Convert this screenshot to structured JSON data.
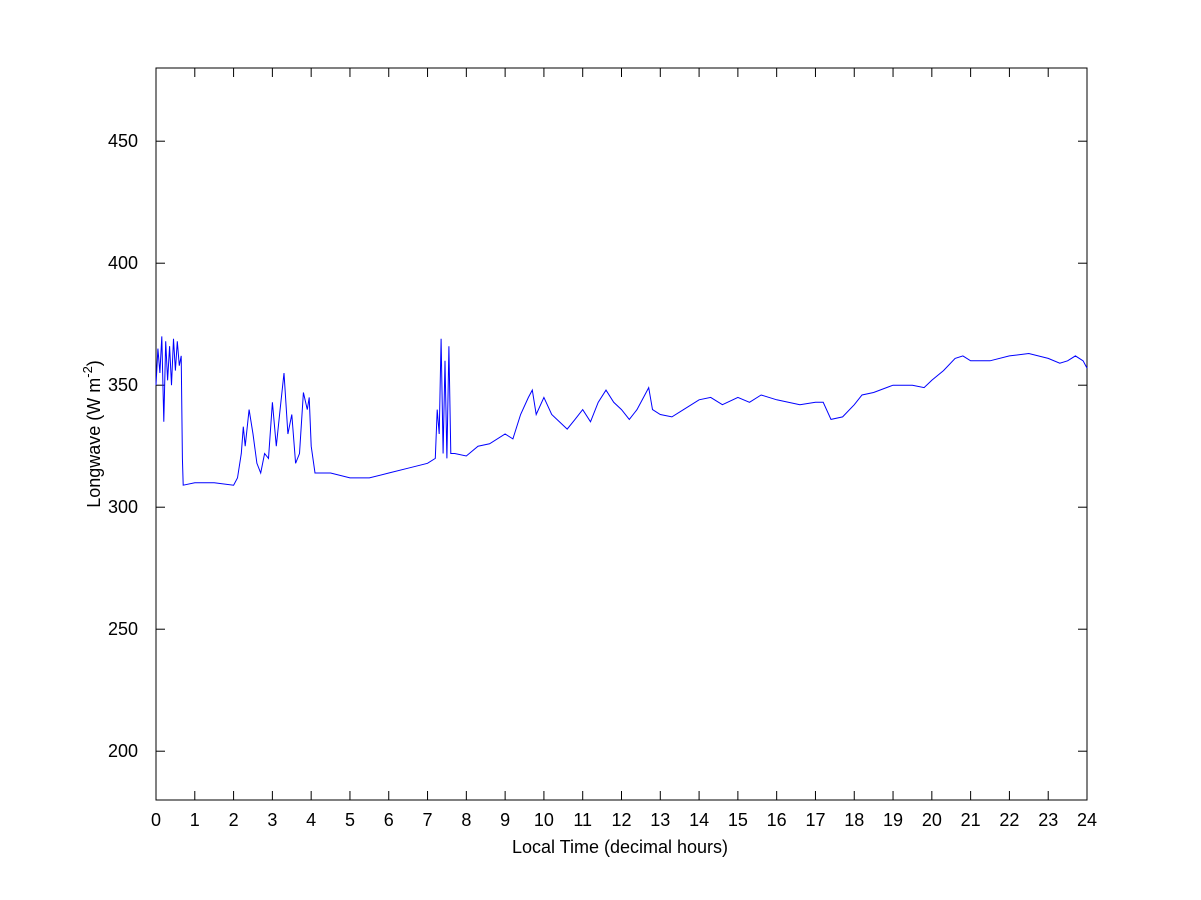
{
  "chart_data": {
    "type": "line",
    "x_label": "Local Time (decimal hours)",
    "y_label": {
      "text": "Longwave (W m",
      "superscript": "-2",
      "suffix": ")"
    },
    "xlim": [
      0,
      24
    ],
    "xticks": [
      0,
      1,
      2,
      3,
      4,
      5,
      6,
      7,
      8,
      9,
      10,
      11,
      12,
      13,
      14,
      15,
      16,
      17,
      18,
      19,
      20,
      21,
      22,
      23,
      24
    ],
    "ylim": [
      180,
      480
    ],
    "yticks": [
      200,
      250,
      300,
      350,
      400,
      450
    ],
    "grid": false,
    "series": [
      {
        "color": "#0000ff",
        "x": [
          0,
          0.05,
          0.1,
          0.15,
          0.2,
          0.25,
          0.3,
          0.35,
          0.4,
          0.45,
          0.5,
          0.55,
          0.6,
          0.65,
          0.68,
          0.7,
          1.0,
          1.5,
          2.0,
          2.1,
          2.2,
          2.25,
          2.3,
          2.4,
          2.5,
          2.6,
          2.7,
          2.8,
          2.9,
          3.0,
          3.1,
          3.2,
          3.3,
          3.4,
          3.5,
          3.6,
          3.7,
          3.8,
          3.9,
          3.95,
          4.0,
          4.1,
          4.5,
          5.0,
          5.5,
          6.0,
          6.5,
          7.0,
          7.2,
          7.25,
          7.3,
          7.35,
          7.4,
          7.45,
          7.5,
          7.55,
          7.6,
          7.7,
          8.0,
          8.3,
          8.6,
          9.0,
          9.2,
          9.4,
          9.6,
          9.7,
          9.8,
          10.0,
          10.2,
          10.4,
          10.6,
          10.8,
          11.0,
          11.2,
          11.4,
          11.6,
          11.8,
          12.0,
          12.2,
          12.4,
          12.6,
          12.7,
          12.8,
          13.0,
          13.3,
          13.6,
          14.0,
          14.3,
          14.6,
          15.0,
          15.3,
          15.6,
          16.0,
          16.3,
          16.6,
          17.0,
          17.2,
          17.4,
          17.7,
          18.0,
          18.2,
          18.5,
          19.0,
          19.5,
          19.8,
          20.0,
          20.3,
          20.6,
          20.8,
          21.0,
          21.5,
          22.0,
          22.5,
          23.0,
          23.3,
          23.5,
          23.7,
          23.9,
          24.0
        ],
        "values": [
          350,
          365,
          355,
          370,
          335,
          368,
          352,
          366,
          350,
          369,
          356,
          368,
          358,
          362,
          320,
          309,
          310,
          310,
          309,
          312,
          322,
          333,
          325,
          340,
          330,
          318,
          314,
          322,
          320,
          343,
          325,
          340,
          355,
          330,
          338,
          318,
          322,
          347,
          340,
          345,
          325,
          314,
          314,
          312,
          312,
          314,
          316,
          318,
          320,
          340,
          330,
          369,
          322,
          360,
          320,
          366,
          322,
          322,
          321,
          325,
          326,
          330,
          328,
          338,
          345,
          348,
          338,
          345,
          338,
          335,
          332,
          336,
          340,
          335,
          343,
          348,
          343,
          340,
          336,
          340,
          346,
          349,
          340,
          338,
          337,
          340,
          344,
          345,
          342,
          345,
          343,
          346,
          344,
          343,
          342,
          343,
          343,
          336,
          337,
          342,
          346,
          347,
          350,
          350,
          349,
          352,
          356,
          361,
          362,
          360,
          360,
          362,
          363,
          361,
          359,
          360,
          362,
          360,
          357
        ]
      }
    ]
  }
}
